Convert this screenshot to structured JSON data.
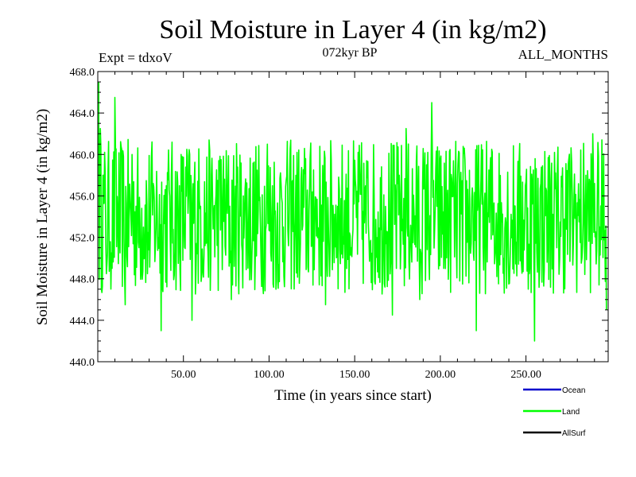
{
  "chart_data": {
    "type": "line",
    "title": "Soil Moisture in Layer 4 (in kg/m2)",
    "subtitle": "072kyr BP",
    "left_note": "Expt = tdxoV",
    "right_note": "ALL_MONTHS",
    "xlabel": "Time (in years since start)",
    "ylabel": "Soil Moisture in Layer 4 (in kg/m2)",
    "xlim": [
      0,
      298
    ],
    "ylim": [
      440.0,
      468.0
    ],
    "x_ticks": [
      50,
      100,
      150,
      200,
      250
    ],
    "x_tick_labels": [
      "50.00",
      "100.00",
      "150.00",
      "200.00",
      "250.00"
    ],
    "y_ticks": [
      440,
      444,
      448,
      452,
      456,
      460,
      464,
      468
    ],
    "y_tick_labels": [
      "440.0",
      "444.0",
      "448.0",
      "452.0",
      "456.0",
      "460.0",
      "464.0",
      "468.0"
    ],
    "grid": false,
    "legend_position": "bottom-right",
    "series": [
      {
        "name": "Ocean",
        "color": "#0000cc",
        "values": []
      },
      {
        "name": "Land",
        "color": "#00ff00",
        "mean": 454.0,
        "points": [
          [
            0.5,
            467.0
          ],
          [
            1.5,
            462.5
          ],
          [
            3,
            458.0
          ],
          [
            5,
            448.5
          ],
          [
            7,
            451.0
          ],
          [
            10,
            465.5
          ],
          [
            13,
            450.5
          ],
          [
            16,
            445.5
          ],
          [
            20,
            460.0
          ],
          [
            24,
            451.0
          ],
          [
            29,
            448.5
          ],
          [
            33,
            455.5
          ],
          [
            37,
            443.0
          ],
          [
            42,
            456.0
          ],
          [
            47,
            449.5
          ],
          [
            52,
            460.5
          ],
          [
            55,
            444.0
          ],
          [
            60,
            455.0
          ],
          [
            66,
            450.0
          ],
          [
            72,
            459.5
          ],
          [
            78,
            446.0
          ],
          [
            85,
            456.0
          ],
          [
            92,
            450.5
          ],
          [
            99,
            461.0
          ],
          [
            104,
            447.0
          ],
          [
            110,
            457.5
          ],
          [
            118,
            449.5
          ],
          [
            126,
            458.5
          ],
          [
            133,
            445.5
          ],
          [
            140,
            455.0
          ],
          [
            148,
            451.0
          ],
          [
            156,
            456.5
          ],
          [
            162,
            447.5
          ],
          [
            168,
            455.0
          ],
          [
            172,
            444.5
          ],
          [
            176,
            458.0
          ],
          [
            180,
            462.5
          ],
          [
            184,
            451.5
          ],
          [
            188,
            446.0
          ],
          [
            192,
            459.0
          ],
          [
            195,
            465.0
          ],
          [
            198,
            455.0
          ],
          [
            203,
            449.0
          ],
          [
            208,
            457.0
          ],
          [
            213,
            447.5
          ],
          [
            219,
            456.0
          ],
          [
            221,
            443.0
          ],
          [
            225,
            451.0
          ],
          [
            230,
            460.5
          ],
          [
            236,
            453.5
          ],
          [
            240,
            447.5
          ],
          [
            245,
            455.5
          ],
          [
            252,
            448.5
          ],
          [
            255,
            442.0
          ],
          [
            262,
            456.5
          ],
          [
            268,
            451.0
          ],
          [
            275,
            459.5
          ],
          [
            281,
            453.5
          ],
          [
            285,
            458.0
          ],
          [
            289,
            462.0
          ],
          [
            293,
            453.0
          ],
          [
            297,
            445.0
          ]
        ]
      },
      {
        "name": "AllSurf",
        "color": "#000000",
        "values": []
      }
    ]
  }
}
